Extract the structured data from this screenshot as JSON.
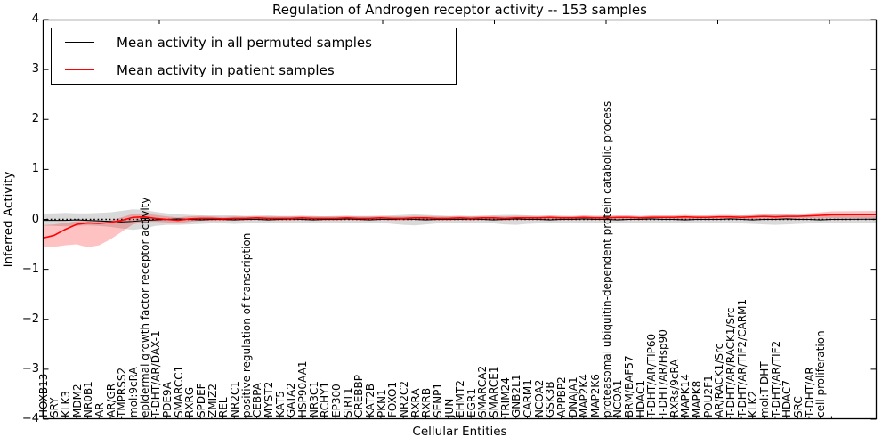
{
  "chart_data": {
    "type": "line",
    "title": "Regulation of Androgen receptor activity -- 153 samples",
    "xlabel": "Cellular Entities",
    "ylabel": "Inferred Activity",
    "ylim": [
      -4,
      4
    ],
    "yticks": [
      4,
      3,
      2,
      1,
      0,
      -1,
      -2,
      -3,
      -4
    ],
    "ytick_labels": [
      "4",
      "3",
      "2",
      "1",
      "0",
      "−1",
      "−2",
      "−3",
      "−4"
    ],
    "grid": false,
    "legend_position": "upper left",
    "zero_line": {
      "style": "dotted",
      "color": "#000000",
      "y": 0
    },
    "categories": [
      "HOXB13",
      "SRY",
      "KLK3",
      "MDM2",
      "NR0B1",
      "AR",
      "AR/GR",
      "TMPRSS2",
      "mol:9cRA",
      "epidermal growth factor receptor activity",
      "T-DHT/AR/DAX-1",
      "PDE9A",
      "SMARCC1",
      "RXRG",
      "SPDEF",
      "ZMIZ2",
      "REL",
      "NR2C1",
      "positive regulation of transcription",
      "CEBPA",
      "MYST2",
      "KAT5",
      "GATA2",
      "HSP90AA1",
      "NR3C1",
      "RCHY1",
      "EP300",
      "SIRT1",
      "CREBBP",
      "KAT2B",
      "PKN1",
      "FOXO1",
      "NR2C2",
      "RXRA",
      "RXRB",
      "SENP1",
      "JUN",
      "EHMT2",
      "EGR1",
      "SMARCA2",
      "SMARCE1",
      "TRIM24",
      "GNB2L1",
      "CARM1",
      "NCOA2",
      "GSK3B",
      "APPBP2",
      "DNAJA1",
      "MAP2K4",
      "MAP2K6",
      "proteasomal ubiquitin-dependent protein catabolic process",
      "NCOA1",
      "BRM/BAF57",
      "HDAC1",
      "T-DHT/AR/TIP60",
      "T-DHT/AR/Hsp90",
      "RXRs/9cRA",
      "MAPK14",
      "MAPK8",
      "POU2F1",
      "AR/RACK1/Src",
      "T-DHT/AR/RACK1/Src",
      "T-DHT/AR/TIF2/CARM1",
      "KLK2",
      "mol:T-DHT",
      "T-DHT/AR/TIF2",
      "HDAC7",
      "SRC",
      "T-DHT/AR",
      "cell proliferation"
    ],
    "series": [
      {
        "name": "Mean activity in all permuted samples",
        "color": "#000000",
        "band_color": "rgba(0,0,0,0.15)",
        "values": [
          -0.02,
          -0.02,
          -0.01,
          -0.02,
          -0.03,
          -0.04,
          -0.05,
          -0.04,
          -0.02,
          -0.01,
          0,
          0.01,
          0,
          -0.01,
          0,
          0,
          -0.01,
          0,
          0,
          -0.01,
          0,
          0.01,
          0,
          -0.01,
          0,
          0,
          0.01,
          0,
          -0.01,
          0,
          0,
          0.01,
          0,
          -0.01,
          0,
          0,
          0,
          0.01,
          0,
          -0.01,
          0,
          0.01,
          0,
          0,
          -0.01,
          0,
          0,
          0.01,
          0,
          0,
          -0.01,
          0,
          0,
          0.01,
          0,
          0,
          -0.01,
          0,
          0,
          0,
          0.01,
          0,
          -0.01,
          0,
          0,
          0.01,
          0,
          0,
          -0.01,
          0
        ],
        "band_lower": [
          -0.13,
          -0.14,
          -0.13,
          -0.12,
          -0.13,
          -0.15,
          -0.18,
          -0.21,
          -0.18,
          -0.13,
          -0.11,
          -0.11,
          -0.1,
          -0.09,
          -0.08,
          -0.08,
          -0.09,
          -0.08,
          -0.08,
          -0.08,
          -0.07,
          -0.07,
          -0.08,
          -0.07,
          -0.07,
          -0.07,
          -0.07,
          -0.08,
          -0.07,
          -0.07,
          -0.09,
          -0.11,
          -0.12,
          -0.1,
          -0.08,
          -0.07,
          -0.07,
          -0.07,
          -0.08,
          -0.08,
          -0.1,
          -0.11,
          -0.09,
          -0.08,
          -0.07,
          -0.07,
          -0.07,
          -0.07,
          -0.07,
          -0.07,
          -0.07,
          -0.07,
          -0.07,
          -0.07,
          -0.07,
          -0.08,
          -0.08,
          -0.07,
          -0.07,
          -0.07,
          -0.08,
          -0.08,
          -0.09,
          -0.1,
          -0.11,
          -0.1,
          -0.09,
          -0.08,
          -0.07,
          -0.07
        ],
        "band_upper": [
          0.12,
          0.13,
          0.12,
          0.12,
          0.13,
          0.14,
          0.17,
          0.2,
          0.19,
          0.15,
          0.12,
          0.1,
          0.09,
          0.08,
          0.08,
          0.08,
          0.08,
          0.07,
          0.07,
          0.08,
          0.07,
          0.07,
          0.07,
          0.07,
          0.06,
          0.07,
          0.07,
          0.07,
          0.07,
          0.07,
          0.08,
          0.09,
          0.1,
          0.09,
          0.08,
          0.07,
          0.07,
          0.07,
          0.07,
          0.08,
          0.09,
          0.09,
          0.08,
          0.07,
          0.07,
          0.07,
          0.06,
          0.07,
          0.07,
          0.07,
          0.07,
          0.07,
          0.06,
          0.07,
          0.07,
          0.07,
          0.07,
          0.07,
          0.07,
          0.07,
          0.07,
          0.08,
          0.08,
          0.09,
          0.09,
          0.09,
          0.08,
          0.08,
          0.07,
          0.07
        ]
      },
      {
        "name": "Mean activity in patient samples",
        "color": "#ff0000",
        "band_color": "rgba(255,0,0,0.24)",
        "values": [
          -0.32,
          -0.2,
          -0.1,
          -0.07,
          -0.08,
          -0.06,
          -0.02,
          0.04,
          0.05,
          0.02,
          0,
          -0.02,
          0.01,
          0.02,
          0.02,
          0.01,
          0.02,
          0.02,
          0.03,
          0.02,
          0.02,
          0.02,
          0.03,
          0.02,
          0.02,
          0.02,
          0.03,
          0.02,
          0.02,
          0.03,
          0.02,
          0.02,
          0.03,
          0.03,
          0.02,
          0.02,
          0.03,
          0.02,
          0.03,
          0.03,
          0.02,
          0.03,
          0.03,
          0.03,
          0.04,
          0.03,
          0.03,
          0.04,
          0.03,
          0.03,
          0.04,
          0.04,
          0.03,
          0.04,
          0.04,
          0.04,
          0.05,
          0.04,
          0.04,
          0.05,
          0.05,
          0.04,
          0.05,
          0.06,
          0.05,
          0.06,
          0.06,
          0.07,
          0.08,
          0.09
        ],
        "band_lower": [
          -0.55,
          -0.52,
          -0.5,
          -0.56,
          -0.52,
          -0.4,
          -0.25,
          -0.1,
          -0.05,
          -0.05,
          -0.06,
          -0.08,
          -0.05,
          -0.03,
          -0.03,
          -0.03,
          -0.02,
          -0.02,
          -0.01,
          -0.02,
          -0.02,
          -0.02,
          -0.01,
          -0.02,
          -0.02,
          -0.02,
          -0.01,
          -0.02,
          -0.02,
          -0.01,
          -0.02,
          -0.02,
          -0.01,
          -0.01,
          -0.02,
          -0.02,
          -0.01,
          -0.02,
          -0.01,
          -0.01,
          -0.02,
          -0.01,
          -0.01,
          -0.01,
          0,
          -0.01,
          -0.01,
          0,
          -0.01,
          -0.01,
          0,
          0,
          -0.01,
          0,
          0,
          0,
          0.01,
          0,
          0,
          0.01,
          0.01,
          0,
          0.01,
          0.01,
          0.01,
          0.01,
          0.01,
          0.02,
          0.02,
          0.02
        ],
        "band_upper": [
          -0.1,
          -0.07,
          -0.04,
          -0.03,
          -0.03,
          -0.02,
          0.04,
          0.11,
          0.12,
          0.09,
          0.06,
          0.04,
          0.06,
          0.07,
          0.06,
          0.05,
          0.06,
          0.06,
          0.07,
          0.06,
          0.06,
          0.06,
          0.07,
          0.06,
          0.06,
          0.06,
          0.07,
          0.06,
          0.06,
          0.07,
          0.06,
          0.06,
          0.07,
          0.07,
          0.06,
          0.06,
          0.07,
          0.06,
          0.07,
          0.07,
          0.06,
          0.07,
          0.07,
          0.07,
          0.08,
          0.07,
          0.07,
          0.08,
          0.07,
          0.07,
          0.08,
          0.08,
          0.07,
          0.08,
          0.08,
          0.08,
          0.09,
          0.08,
          0.08,
          0.09,
          0.09,
          0.08,
          0.09,
          0.11,
          0.1,
          0.11,
          0.11,
          0.12,
          0.14,
          0.16
        ]
      }
    ]
  }
}
